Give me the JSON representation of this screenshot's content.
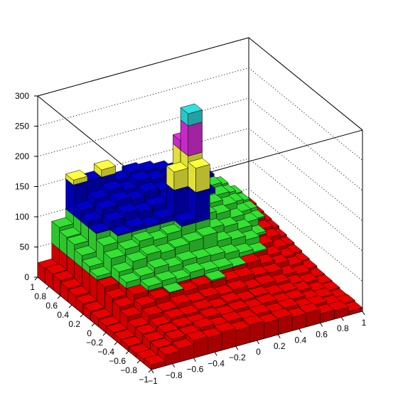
{
  "chart_data": {
    "type": "lego",
    "xlim": [
      -1,
      1
    ],
    "ylim": [
      -1,
      1
    ],
    "zlim": [
      0,
      300
    ],
    "xticks": [
      {
        "value": -1,
        "label": "−1"
      },
      {
        "value": -0.8,
        "label": "−0.8"
      },
      {
        "value": -0.6,
        "label": "−0.6"
      },
      {
        "value": -0.4,
        "label": "−0.4"
      },
      {
        "value": -0.2,
        "label": "−0.2"
      },
      0,
      0.2,
      0.4,
      0.6,
      0.8,
      1
    ],
    "yticks": [
      {
        "value": -1,
        "label": "−1"
      },
      {
        "value": -0.8,
        "label": "−0.8"
      },
      {
        "value": -0.6,
        "label": "−0.6"
      },
      {
        "value": -0.4,
        "label": "−0.4"
      },
      {
        "value": -0.2,
        "label": "−0.2"
      },
      0,
      0.2,
      0.4,
      0.6,
      0.8,
      1
    ],
    "zticks": [
      0,
      50,
      100,
      150,
      200,
      250,
      300
    ],
    "level_colors": [
      "#e80000",
      "#33e033",
      "#0000c8",
      "#ffff40",
      "#e030e0",
      "#30e0e0"
    ],
    "grid": true,
    "values": [
      [
        8,
        18,
        22,
        29,
        27,
        30,
        26,
        29,
        25,
        27,
        22,
        23,
        15,
        14,
        6
      ],
      [
        7,
        19,
        27,
        28,
        33,
        29,
        31,
        28,
        30,
        26,
        27,
        21,
        19,
        13,
        8
      ],
      [
        6,
        20,
        28,
        31,
        30,
        34,
        31,
        33,
        29,
        31,
        26,
        25,
        18,
        15,
        7
      ],
      [
        8,
        22,
        29,
        35,
        34,
        37,
        33,
        36,
        32,
        33,
        29,
        27,
        22,
        15,
        9
      ],
      [
        9,
        23,
        36,
        37,
        42,
        39,
        41,
        38,
        40,
        35,
        36,
        31,
        23,
        19,
        10
      ],
      [
        10,
        30,
        42,
        47,
        51,
        46,
        49,
        52,
        45,
        44,
        40,
        38,
        28,
        23,
        11
      ],
      [
        11,
        36,
        50,
        57,
        60,
        56,
        61,
        57,
        56,
        51,
        50,
        43,
        36,
        27,
        14
      ],
      [
        13,
        40,
        60,
        64,
        71,
        66,
        70,
        67,
        66,
        62,
        57,
        52,
        40,
        30,
        16
      ],
      [
        15,
        49,
        67,
        78,
        83,
        79,
        82,
        85,
        88,
        73,
        69,
        62,
        47,
        35,
        19
      ],
      [
        17,
        56,
        79,
        88,
        95,
        90,
        94,
        108,
        190,
        84,
        80,
        70,
        54,
        42,
        22
      ],
      [
        20,
        62,
        90,
        102,
        108,
        103,
        110,
        180,
        270,
        96,
        91,
        78,
        64,
        46,
        25
      ],
      [
        22,
        70,
        102,
        114,
        121,
        116,
        120,
        125,
        215,
        108,
        98,
        88,
        70,
        52,
        29
      ],
      [
        25,
        78,
        110,
        124,
        131,
        126,
        133,
        129,
        140,
        118,
        107,
        95,
        76,
        57,
        31
      ],
      [
        26,
        80,
        118,
        130,
        138,
        132,
        141,
        136,
        130,
        120,
        113,
        100,
        80,
        60,
        33
      ],
      [
        24,
        86,
        158,
        150,
        162,
        138,
        145,
        141,
        135,
        128,
        117,
        104,
        83,
        62,
        36
      ]
    ]
  }
}
